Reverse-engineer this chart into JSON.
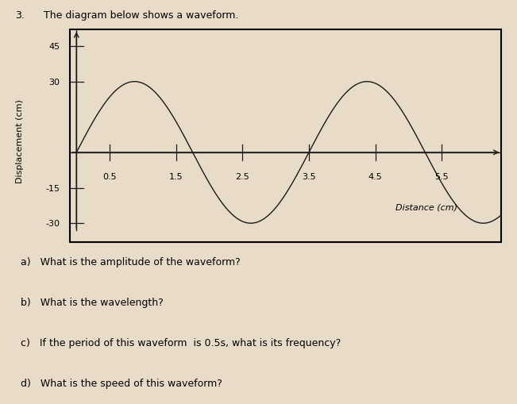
{
  "title": "The diagram below shows a waveform.",
  "question_number": "3.",
  "ylabel": "Displacement (cm)",
  "xlabel": "Distance (cm)",
  "bg_color": "#e8dcc8",
  "plot_bg_color": "#e8dcc8",
  "axis_color": "#1a1a1a",
  "wave_color": "#1a1a1a",
  "yticks": [
    -30,
    -15,
    30,
    45
  ],
  "ytick_labels": [
    "-30",
    "-15",
    "30",
    "45"
  ],
  "xticks": [
    0.5,
    1.5,
    2.5,
    3.5,
    4.5,
    5.5
  ],
  "xtick_labels": [
    "0.5",
    "1.5",
    "2.5",
    "3.5",
    "4.5",
    "5.5"
  ],
  "ylim": [
    -38,
    52
  ],
  "xlim": [
    -0.1,
    6.4
  ],
  "wavelength": 3.5,
  "amplitude": 30,
  "questions": [
    "a)   What is the amplitude of the waveform?",
    "b)   What is the wavelength?",
    "c)   If the period of this waveform  is 0.5s, what is its frequency?",
    "d)   What is the speed of this waveform?"
  ],
  "font_family": "DejaVu Sans",
  "title_fontsize": 9,
  "label_fontsize": 8,
  "tick_fontsize": 8,
  "question_fontsize": 9
}
